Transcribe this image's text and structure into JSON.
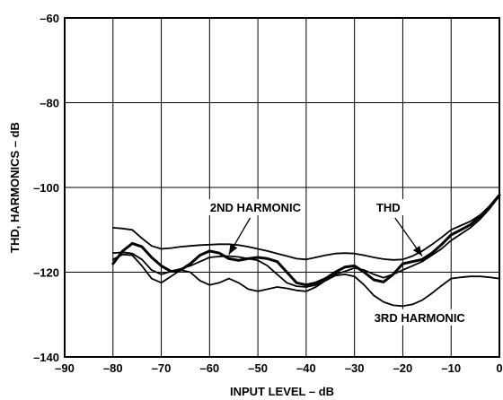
{
  "chart_data": {
    "type": "line",
    "xlabel": "INPUT LEVEL – dB",
    "ylabel": "THD, HARMONICS – dB",
    "xlim": [
      -90,
      0
    ],
    "ylim": [
      -140,
      -60
    ],
    "x_ticks": [
      -90,
      -80,
      -70,
      -60,
      -50,
      -40,
      -30,
      -20,
      -10,
      0
    ],
    "x_tick_labels": [
      "–90",
      "–80",
      "–70",
      "–60",
      "–50",
      "–40",
      "–30",
      "–20",
      "–10",
      "0"
    ],
    "y_ticks": [
      -140,
      -120,
      -100,
      -80,
      -60
    ],
    "y_tick_labels": [
      "–140",
      "–120",
      "–100",
      "–80",
      "–60"
    ],
    "grid": true,
    "series": [
      {
        "name": "2ND HARMONIC",
        "x": [
          -80,
          -78,
          -76,
          -74,
          -72,
          -70,
          -68,
          -66,
          -64,
          -62,
          -60,
          -58,
          -56,
          -54,
          -52,
          -50,
          -48,
          -46,
          -44,
          -42,
          -40,
          -38,
          -36,
          -34,
          -32,
          -30,
          -28,
          -26,
          -24,
          -22,
          -20,
          -18,
          -16,
          -14,
          -12,
          -10,
          -8,
          -6,
          -4,
          -2,
          0
        ],
        "y": [
          -115.5,
          -115.3,
          -115.6,
          -117,
          -119.5,
          -120.5,
          -119.8,
          -119.2,
          -118.5,
          -117.5,
          -116.5,
          -116.3,
          -116.2,
          -116.4,
          -116.8,
          -117.2,
          -118.5,
          -120.5,
          -122.5,
          -123.3,
          -123.5,
          -123.0,
          -121.8,
          -120.5,
          -119.8,
          -119.0,
          -119.5,
          -120.5,
          -121.3,
          -120.5,
          -119.5,
          -118.5,
          -117.5,
          -116.0,
          -114.5,
          -112.5,
          -111.0,
          -109.5,
          -107.5,
          -105.0,
          -102.0
        ]
      },
      {
        "name": "THD",
        "x": [
          -80,
          -78,
          -76,
          -74,
          -72,
          -70,
          -68,
          -66,
          -64,
          -62,
          -60,
          -58,
          -56,
          -54,
          -52,
          -50,
          -48,
          -46,
          -44,
          -42,
          -40,
          -38,
          -36,
          -34,
          -32,
          -30,
          -28,
          -26,
          -24,
          -22,
          -20,
          -18,
          -16,
          -14,
          -12,
          -10,
          -8,
          -6,
          -4,
          -2,
          0
        ],
        "y": [
          -109.5,
          -109.7,
          -110.0,
          -112.0,
          -113.8,
          -114.5,
          -114.3,
          -114.0,
          -113.8,
          -113.6,
          -113.5,
          -113.4,
          -113.4,
          -113.6,
          -114.0,
          -114.5,
          -115.0,
          -115.6,
          -116.2,
          -116.8,
          -117.0,
          -116.5,
          -116.0,
          -115.6,
          -115.5,
          -115.6,
          -116.0,
          -116.5,
          -116.9,
          -117.1,
          -117.0,
          -116.2,
          -115.0,
          -113.5,
          -111.8,
          -110.0,
          -109.0,
          -108.0,
          -106.5,
          -104.5,
          -102.0
        ]
      },
      {
        "name": "",
        "x": [
          -80,
          -78,
          -76,
          -74,
          -72,
          -70,
          -68,
          -66,
          -64,
          -62,
          -60,
          -58,
          -56,
          -54,
          -52,
          -50,
          -48,
          -46,
          -44,
          -42,
          -40,
          -38,
          -36,
          -34,
          -32,
          -30,
          -28,
          -26,
          -24,
          -22,
          -20,
          -18,
          -16,
          -14,
          -12,
          -10,
          -8,
          -6,
          -4,
          -2,
          0
        ],
        "y": [
          -118.0,
          -115.0,
          -113.2,
          -114.0,
          -116.5,
          -118.5,
          -119.8,
          -119.5,
          -118.0,
          -116.0,
          -115.0,
          -115.5,
          -116.8,
          -117.2,
          -116.8,
          -116.5,
          -116.8,
          -117.5,
          -120.0,
          -122.5,
          -123.0,
          -122.5,
          -121.5,
          -120.0,
          -118.8,
          -118.5,
          -120.0,
          -121.8,
          -122.3,
          -120.5,
          -118.0,
          -117.5,
          -117.0,
          -115.5,
          -113.5,
          -111.2,
          -110.0,
          -108.8,
          -106.8,
          -104.5,
          -101.8
        ],
        "bold": true
      },
      {
        "name": "3RD HARMONIC",
        "x": [
          -80,
          -78,
          -76,
          -74,
          -72,
          -70,
          -68,
          -66,
          -64,
          -62,
          -60,
          -58,
          -56,
          -54,
          -52,
          -50,
          -48,
          -46,
          -44,
          -42,
          -40,
          -38,
          -36,
          -34,
          -32,
          -30,
          -28,
          -26,
          -24,
          -22,
          -20,
          -18,
          -16,
          -14,
          -12,
          -10,
          -8,
          -6,
          -4,
          -2,
          0
        ],
        "y": [
          -117.0,
          -115.8,
          -116.0,
          -118.5,
          -121.5,
          -122.5,
          -121.0,
          -119.5,
          -120.0,
          -122.0,
          -123.0,
          -122.5,
          -121.5,
          -122.5,
          -124.0,
          -124.5,
          -124.0,
          -123.5,
          -123.8,
          -124.3,
          -124.5,
          -123.5,
          -122.0,
          -120.8,
          -120.5,
          -121.0,
          -123.0,
          -125.5,
          -127.0,
          -127.8,
          -128.0,
          -127.6,
          -126.6,
          -125.0,
          -123.2,
          -121.5,
          -121.2,
          -121.0,
          -121.0,
          -121.2,
          -121.5
        ]
      }
    ],
    "annotations": [
      {
        "text": "2ND HARMONIC",
        "x": -50.5,
        "y": -105.5,
        "arrow_to": [
          -56,
          -115.8
        ]
      },
      {
        "text": "THD",
        "x": -23,
        "y": -105.5,
        "arrow_to": [
          -16,
          -116.2
        ]
      },
      {
        "text": "3RD HARMONIC",
        "x": -16.5,
        "y": -131.5
      }
    ]
  }
}
